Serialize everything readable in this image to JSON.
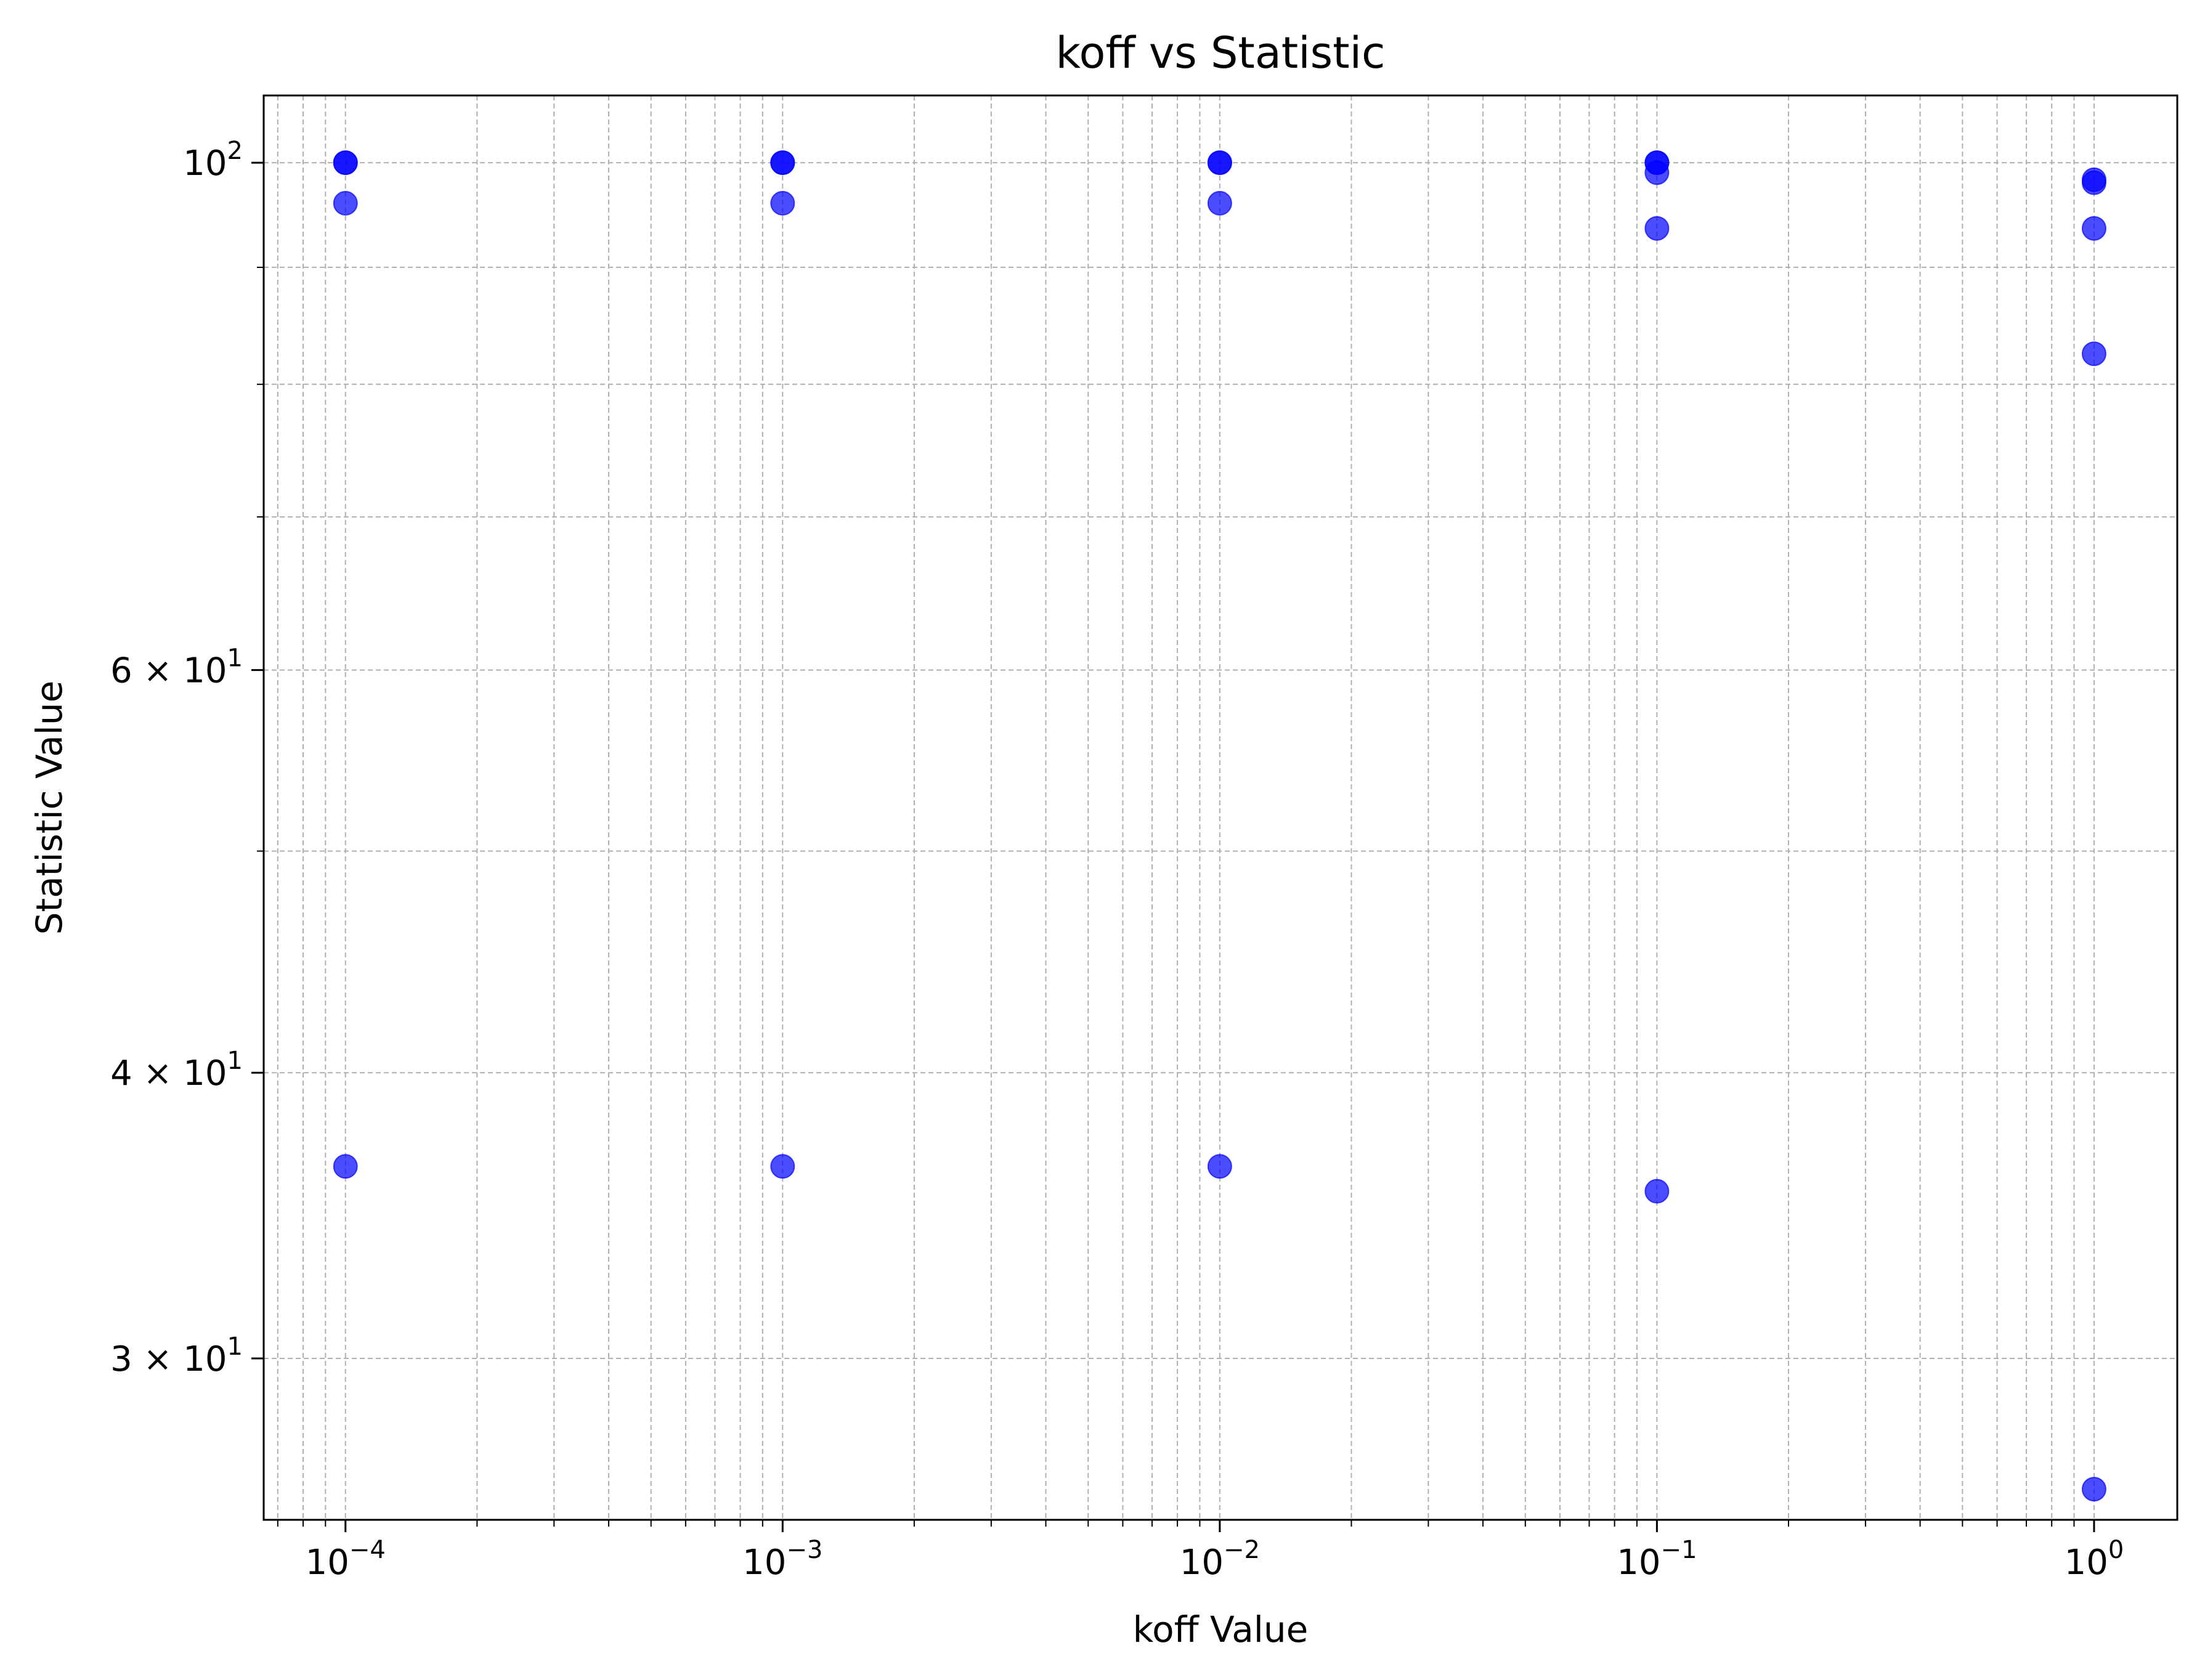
{
  "chart_data": {
    "type": "scatter",
    "title": "koff vs Statistic",
    "xlabel": "koff Value",
    "ylabel": "Statistic Value",
    "x_scale": "log",
    "y_scale": "log",
    "xlim": [
      6.5e-05,
      1.55
    ],
    "ylim": [
      25.5,
      107.0
    ],
    "grid": true,
    "x_ticks": [
      {
        "value": 0.0001,
        "base": "10",
        "exp": "−4"
      },
      {
        "value": 0.001,
        "base": "10",
        "exp": "−3"
      },
      {
        "value": 0.01,
        "base": "10",
        "exp": "−2"
      },
      {
        "value": 0.1,
        "base": "10",
        "exp": "−1"
      },
      {
        "value": 1,
        "base": "10",
        "exp": "0"
      }
    ],
    "y_ticks": [
      {
        "value": 100,
        "mant": "",
        "base": "10",
        "exp": "2"
      },
      {
        "value": 60,
        "mant": "6 × ",
        "base": "10",
        "exp": "1"
      },
      {
        "value": 40,
        "mant": "4 × ",
        "base": "10",
        "exp": "1"
      },
      {
        "value": 30,
        "mant": "3 × ",
        "base": "10",
        "exp": "1"
      }
    ],
    "y_minor_gridlines": [
      50,
      70,
      80,
      90
    ],
    "marker_color": "#0000ff",
    "points": [
      {
        "x": 0.0001,
        "y": 100
      },
      {
        "x": 0.0001,
        "y": 100
      },
      {
        "x": 0.0001,
        "y": 96.0
      },
      {
        "x": 0.0001,
        "y": 36.4
      },
      {
        "x": 0.001,
        "y": 100
      },
      {
        "x": 0.001,
        "y": 100
      },
      {
        "x": 0.001,
        "y": 96.0
      },
      {
        "x": 0.001,
        "y": 36.4
      },
      {
        "x": 0.01,
        "y": 100
      },
      {
        "x": 0.01,
        "y": 100
      },
      {
        "x": 0.01,
        "y": 96.0
      },
      {
        "x": 0.01,
        "y": 36.4
      },
      {
        "x": 0.1,
        "y": 100
      },
      {
        "x": 0.1,
        "y": 100
      },
      {
        "x": 0.1,
        "y": 99.0
      },
      {
        "x": 0.1,
        "y": 93.6
      },
      {
        "x": 0.1,
        "y": 35.5
      },
      {
        "x": 1,
        "y": 98.3
      },
      {
        "x": 1,
        "y": 98.0
      },
      {
        "x": 1,
        "y": 93.6
      },
      {
        "x": 1,
        "y": 82.5
      },
      {
        "x": 1,
        "y": 26.3
      }
    ]
  }
}
